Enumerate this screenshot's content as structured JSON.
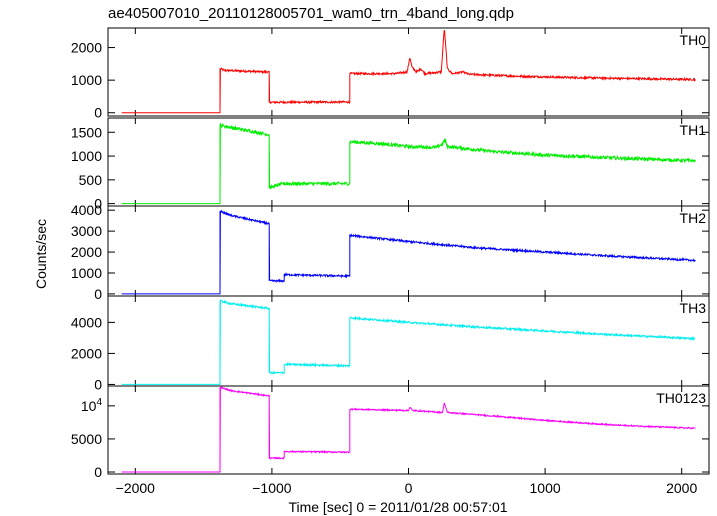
{
  "chart_data": {
    "type": "line",
    "title": "ae405007010_20110128005701_wam0_trn_4band_long.qdp",
    "xlabel": "Time [sec] 0 = 2011/01/28 00:57:01",
    "ylabel": "Counts/sec",
    "xlim": [
      -2200,
      2200
    ],
    "x_ticks": [
      {
        "value": -2000,
        "label": "−2000"
      },
      {
        "value": -1000,
        "label": "−1000"
      },
      {
        "value": 0,
        "label": "0"
      },
      {
        "value": 1000,
        "label": "1000"
      },
      {
        "value": 2000,
        "label": "2000"
      }
    ],
    "panels": [
      {
        "name": "TH0",
        "color": "#ff0000",
        "ylim": [
          -100,
          2600
        ],
        "y_ticks": [
          {
            "value": 0,
            "label": "0"
          },
          {
            "value": 1000,
            "label": "1000"
          },
          {
            "value": 2000,
            "label": "2000"
          }
        ],
        "noise": 30,
        "points": [
          [
            -2100,
            0
          ],
          [
            -1380,
            0
          ],
          [
            -1380,
            1360
          ],
          [
            -1350,
            1300
          ],
          [
            -1020,
            1250
          ],
          [
            -1020,
            320
          ],
          [
            -430,
            330
          ],
          [
            -430,
            1200
          ],
          [
            -100,
            1200
          ],
          [
            -10,
            1250
          ],
          [
            10,
            1700
          ],
          [
            25,
            1400
          ],
          [
            60,
            1250
          ],
          [
            90,
            1350
          ],
          [
            120,
            1200
          ],
          [
            240,
            1250
          ],
          [
            262,
            2600
          ],
          [
            285,
            1350
          ],
          [
            320,
            1200
          ],
          [
            400,
            1250
          ],
          [
            440,
            1180
          ],
          [
            800,
            1120
          ],
          [
            1200,
            1080
          ],
          [
            1600,
            1050
          ],
          [
            2100,
            1020
          ]
        ]
      },
      {
        "name": "TH1",
        "color": "#00ee00",
        "ylim": [
          -50,
          1800
        ],
        "y_ticks": [
          {
            "value": 0,
            "label": "0"
          },
          {
            "value": 500,
            "label": "500"
          },
          {
            "value": 1000,
            "label": "1000"
          },
          {
            "value": 1500,
            "label": "1500"
          }
        ],
        "noise": 35,
        "points": [
          [
            -2100,
            0
          ],
          [
            -1380,
            0
          ],
          [
            -1380,
            1650
          ],
          [
            -1300,
            1600
          ],
          [
            -1020,
            1450
          ],
          [
            -1020,
            330
          ],
          [
            -1000,
            350
          ],
          [
            -920,
            420
          ],
          [
            -430,
            420
          ],
          [
            -430,
            1300
          ],
          [
            -200,
            1260
          ],
          [
            0,
            1200
          ],
          [
            200,
            1180
          ],
          [
            250,
            1250
          ],
          [
            265,
            1350
          ],
          [
            285,
            1200
          ],
          [
            600,
            1100
          ],
          [
            1000,
            1020
          ],
          [
            1500,
            960
          ],
          [
            2100,
            900
          ]
        ]
      },
      {
        "name": "TH2",
        "color": "#0000ff",
        "ylim": [
          -100,
          4200
        ],
        "y_ticks": [
          {
            "value": 0,
            "label": "0"
          },
          {
            "value": 1000,
            "label": "1000"
          },
          {
            "value": 2000,
            "label": "2000"
          },
          {
            "value": 3000,
            "label": "3000"
          },
          {
            "value": 4000,
            "label": "4000"
          }
        ],
        "noise": 45,
        "points": [
          [
            -2100,
            0
          ],
          [
            -1380,
            0
          ],
          [
            -1380,
            3950
          ],
          [
            -1300,
            3750
          ],
          [
            -1020,
            3350
          ],
          [
            -1020,
            620
          ],
          [
            -910,
            620
          ],
          [
            -910,
            920
          ],
          [
            -430,
            850
          ],
          [
            -430,
            2800
          ],
          [
            0,
            2500
          ],
          [
            500,
            2200
          ],
          [
            1000,
            2000
          ],
          [
            1500,
            1800
          ],
          [
            2100,
            1600
          ]
        ]
      },
      {
        "name": "TH3",
        "color": "#00eeee",
        "ylim": [
          -100,
          5700
        ],
        "y_ticks": [
          {
            "value": 0,
            "label": "0"
          },
          {
            "value": 2000,
            "label": "2000"
          },
          {
            "value": 4000,
            "label": "4000"
          }
        ],
        "noise": 60,
        "points": [
          [
            -2100,
            0
          ],
          [
            -1380,
            0
          ],
          [
            -1380,
            5400
          ],
          [
            -1300,
            5200
          ],
          [
            -1020,
            4900
          ],
          [
            -1020,
            750
          ],
          [
            -910,
            750
          ],
          [
            -910,
            1300
          ],
          [
            -430,
            1200
          ],
          [
            -430,
            4300
          ],
          [
            0,
            4000
          ],
          [
            500,
            3700
          ],
          [
            1000,
            3450
          ],
          [
            1500,
            3200
          ],
          [
            2100,
            2950
          ]
        ]
      },
      {
        "name": "TH0123",
        "color": "#ff00ff",
        "ylim": [
          -300,
          13000
        ],
        "y_ticks": [
          {
            "value": 0,
            "label": "0"
          },
          {
            "value": 5000,
            "label": "5000"
          }
        ],
        "y_ticks_sup": [
          {
            "value": 10000,
            "base": "10",
            "exp": "4"
          }
        ],
        "noise": 100,
        "points": [
          [
            -2100,
            0
          ],
          [
            -1380,
            0
          ],
          [
            -1380,
            12800
          ],
          [
            -1300,
            12300
          ],
          [
            -1020,
            11500
          ],
          [
            -1020,
            2100
          ],
          [
            -910,
            2100
          ],
          [
            -910,
            3100
          ],
          [
            -430,
            3000
          ],
          [
            -430,
            9500
          ],
          [
            0,
            9300
          ],
          [
            10,
            9800
          ],
          [
            30,
            9300
          ],
          [
            250,
            9000
          ],
          [
            262,
            10500
          ],
          [
            285,
            9000
          ],
          [
            600,
            8500
          ],
          [
            1000,
            7800
          ],
          [
            1500,
            7100
          ],
          [
            2100,
            6600
          ]
        ]
      }
    ]
  }
}
